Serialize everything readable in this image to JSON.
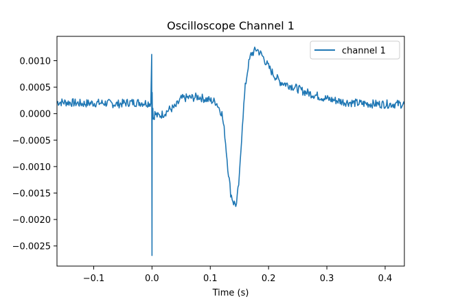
{
  "chart_data": {
    "type": "line",
    "title": "Oscilloscope Channel 1",
    "xlabel": "Time (s)",
    "ylabel": "",
    "xlim": [
      -0.163,
      0.433
    ],
    "ylim": [
      -0.00288,
      0.00146
    ],
    "x_ticks": [
      -0.1,
      0.0,
      0.1,
      0.2,
      0.3,
      0.4
    ],
    "x_tick_labels": [
      "−0.1",
      "0.0",
      "0.1",
      "0.2",
      "0.3",
      "0.4"
    ],
    "y_ticks": [
      0.001,
      0.0005,
      0.0,
      -0.0005,
      -0.001,
      -0.0015,
      -0.002,
      -0.0025
    ],
    "y_tick_labels": [
      "0.0010",
      "0.0005",
      "0.0000",
      "−0.0005",
      "−0.0010",
      "−0.0015",
      "−0.0020",
      "−0.0025"
    ],
    "grid": false,
    "legend_position": "top-right",
    "color": "#1f77b4",
    "series": [
      {
        "name": "channel 1",
        "x": [
          -0.163,
          -0.14,
          -0.12,
          -0.1,
          -0.08,
          -0.06,
          -0.04,
          -0.02,
          -0.01,
          -0.002,
          -0.0005,
          0.0,
          0.0003,
          0.0008,
          0.0015,
          0.002,
          0.005,
          0.01,
          0.02,
          0.03,
          0.04,
          0.05,
          0.06,
          0.07,
          0.08,
          0.09,
          0.1,
          0.11,
          0.12,
          0.125,
          0.13,
          0.135,
          0.14,
          0.145,
          0.15,
          0.155,
          0.16,
          0.165,
          0.17,
          0.18,
          0.19,
          0.2,
          0.21,
          0.22,
          0.24,
          0.26,
          0.28,
          0.3,
          0.33,
          0.36,
          0.39,
          0.42,
          0.433
        ],
        "y": [
          0.00022,
          0.00021,
          0.00019,
          0.0002,
          0.0002,
          0.00018,
          0.00021,
          0.00021,
          0.0002,
          0.0002,
          0.00112,
          -0.00268,
          0.0004,
          -0.0001,
          0.0001,
          -0.0001,
          0.0,
          -5e-05,
          0.0,
          8e-05,
          0.00012,
          0.00028,
          0.0003,
          0.0003,
          0.00032,
          0.00028,
          0.00025,
          0.00022,
          0.0,
          -0.0004,
          -0.001,
          -0.0015,
          -0.00168,
          -0.00172,
          -0.0012,
          -0.0002,
          0.0005,
          0.0009,
          0.00112,
          0.00122,
          0.00108,
          0.00088,
          0.00072,
          0.0006,
          0.00052,
          0.00042,
          0.00035,
          0.00028,
          0.00022,
          0.00019,
          0.00018,
          0.00018,
          0.00018
        ]
      }
    ]
  }
}
